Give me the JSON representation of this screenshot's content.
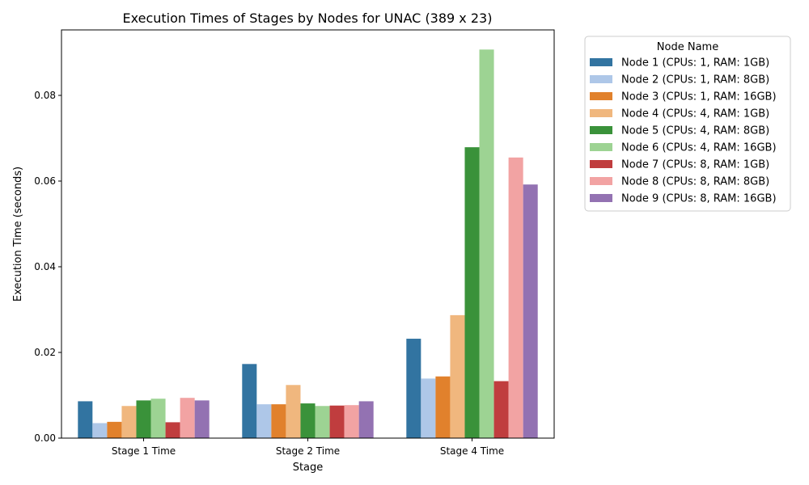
{
  "chart_data": {
    "type": "bar",
    "title": "Execution Times of Stages by Nodes for UNAC (389 x 23)",
    "xlabel": "Stage",
    "ylabel": "Execution Time (seconds)",
    "categories": [
      "Stage 1 Time",
      "Stage 2 Time",
      "Stage 4 Time"
    ],
    "ylim": [
      0,
      0.095
    ],
    "yticks": [
      "0.00",
      "0.02",
      "0.04",
      "0.06",
      "0.08"
    ],
    "grid": false,
    "legend": {
      "title": "Node Name",
      "placement": "outside-right-top"
    },
    "series": [
      {
        "name": "Node 1 (CPUs: 1, RAM: 1GB)",
        "color": "#3274a1",
        "values": [
          0.0086,
          0.0173,
          0.0232
        ]
      },
      {
        "name": "Node 2 (CPUs: 1, RAM: 8GB)",
        "color": "#aec7e8",
        "values": [
          0.0035,
          0.0079,
          0.0139
        ]
      },
      {
        "name": "Node 3 (CPUs: 1, RAM: 16GB)",
        "color": "#e1812c",
        "values": [
          0.0038,
          0.0079,
          0.0144
        ]
      },
      {
        "name": "Node 4 (CPUs: 4, RAM: 1GB)",
        "color": "#f0b77e",
        "values": [
          0.0075,
          0.0124,
          0.0287
        ]
      },
      {
        "name": "Node 5 (CPUs: 4, RAM: 8GB)",
        "color": "#3a923a",
        "values": [
          0.0088,
          0.0081,
          0.0679
        ]
      },
      {
        "name": "Node 6 (CPUs: 4, RAM: 16GB)",
        "color": "#9dd393",
        "values": [
          0.0092,
          0.0075,
          0.0907
        ]
      },
      {
        "name": "Node 7 (CPUs: 8, RAM: 1GB)",
        "color": "#c03d3e",
        "values": [
          0.0037,
          0.0076,
          0.0133
        ]
      },
      {
        "name": "Node 8 (CPUs: 8, RAM: 8GB)",
        "color": "#f2a3a3",
        "values": [
          0.0094,
          0.0077,
          0.0655
        ]
      },
      {
        "name": "Node 9 (CPUs: 8, RAM: 16GB)",
        "color": "#9372b2",
        "values": [
          0.0088,
          0.0086,
          0.0592
        ]
      }
    ]
  }
}
